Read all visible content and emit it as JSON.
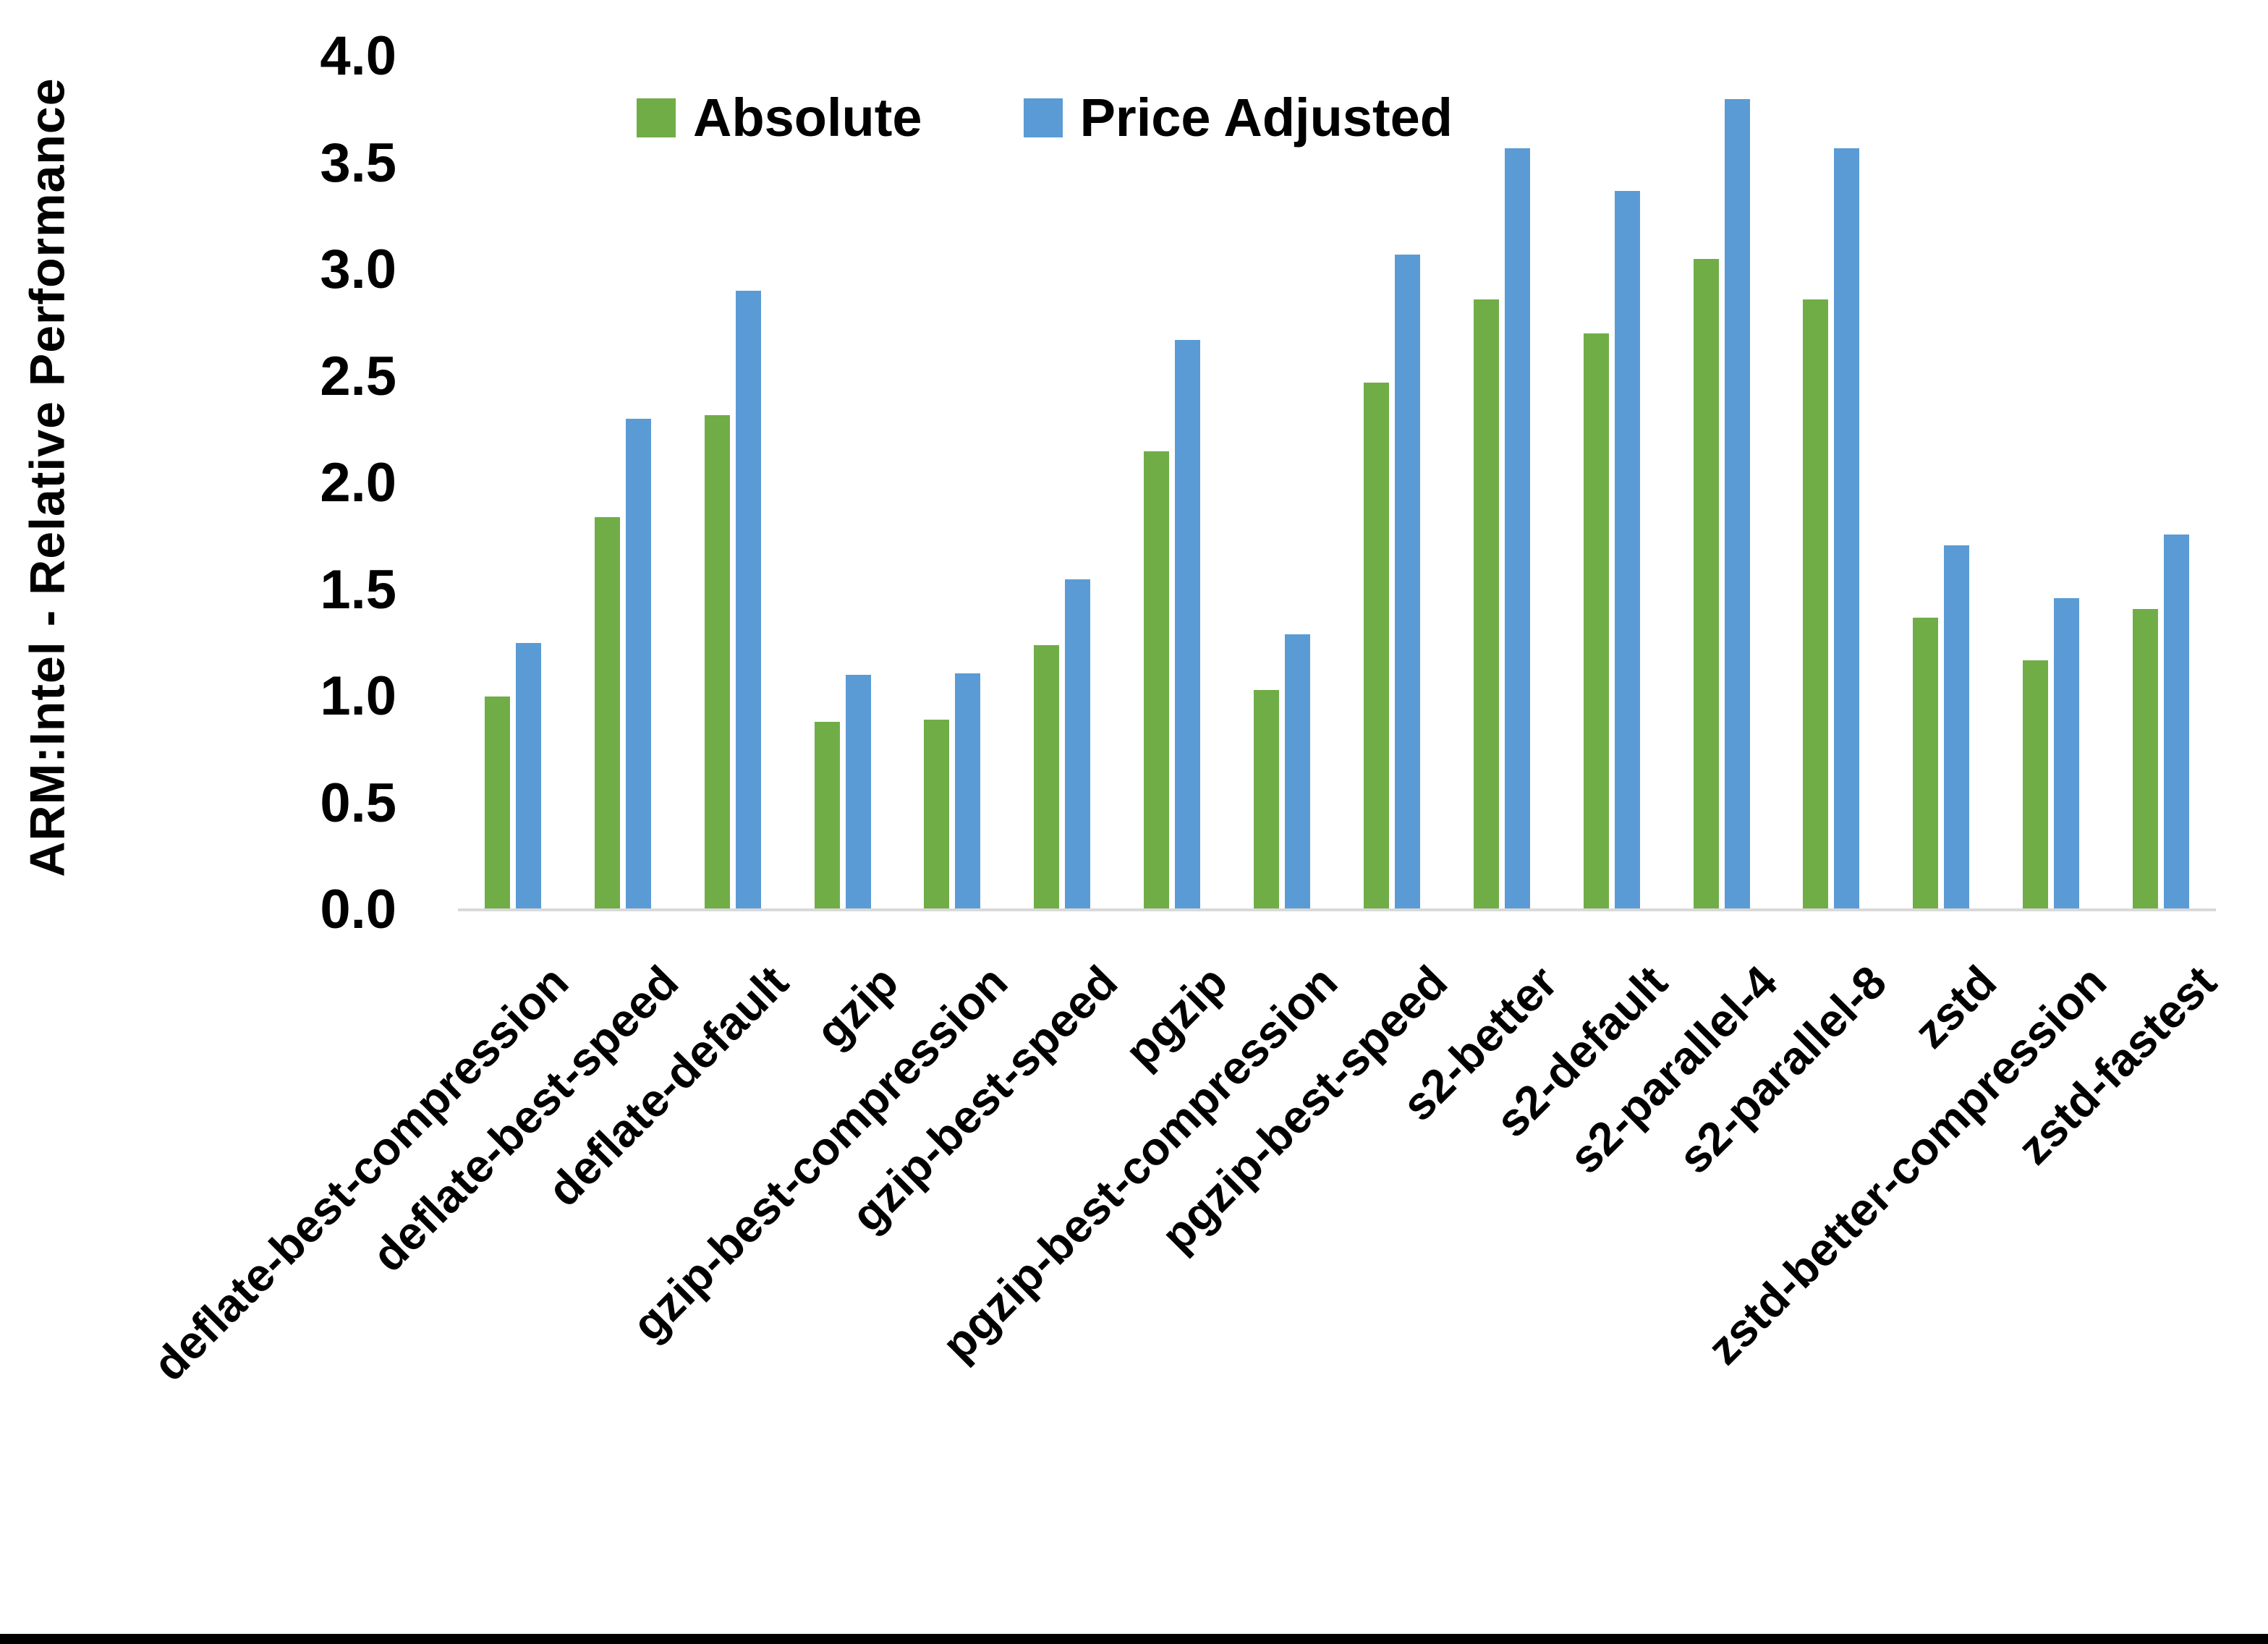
{
  "chart_data": {
    "type": "bar",
    "title": "",
    "xlabel": "",
    "ylabel": "ARM:Intel - Relative Performance",
    "ylim": [
      0.0,
      4.0
    ],
    "ytick_step": 0.5,
    "yticks": [
      "0.0",
      "0.5",
      "1.0",
      "1.5",
      "2.0",
      "2.5",
      "3.0",
      "3.5",
      "4.0"
    ],
    "grid": false,
    "legend_position": "top-center",
    "categories": [
      "deflate-best-compression",
      "deflate-best-speed",
      "deflate-default",
      "gzip",
      "gzip-best-compression",
      "gzip-best-speed",
      "pgzip",
      "pgzip-best-compression",
      "pgzip-best-speed",
      "s2-better",
      "s2-default",
      "s2-parallel-4",
      "s2-parallel-8",
      "zstd",
      "zstd-better-compression",
      "zstd-fastest"
    ],
    "series": [
      {
        "name": "Absolute",
        "color": "#70AD47",
        "values": [
          1.0,
          1.84,
          2.32,
          0.88,
          0.89,
          1.24,
          2.15,
          1.03,
          2.47,
          2.86,
          2.7,
          3.05,
          2.86,
          1.37,
          1.17,
          1.41
        ]
      },
      {
        "name": "Price Adjusted",
        "color": "#5B9BD5",
        "values": [
          1.25,
          2.3,
          2.9,
          1.1,
          1.11,
          1.55,
          2.67,
          1.29,
          3.07,
          3.57,
          3.37,
          3.8,
          3.57,
          1.71,
          1.46,
          1.76
        ]
      }
    ],
    "colors": {
      "axis_line": "#D9D9D9",
      "text": "#000000",
      "background": "#FFFFFF"
    }
  },
  "layout_note": "clustered column chart, no gridlines, bottom black screenshot edge"
}
